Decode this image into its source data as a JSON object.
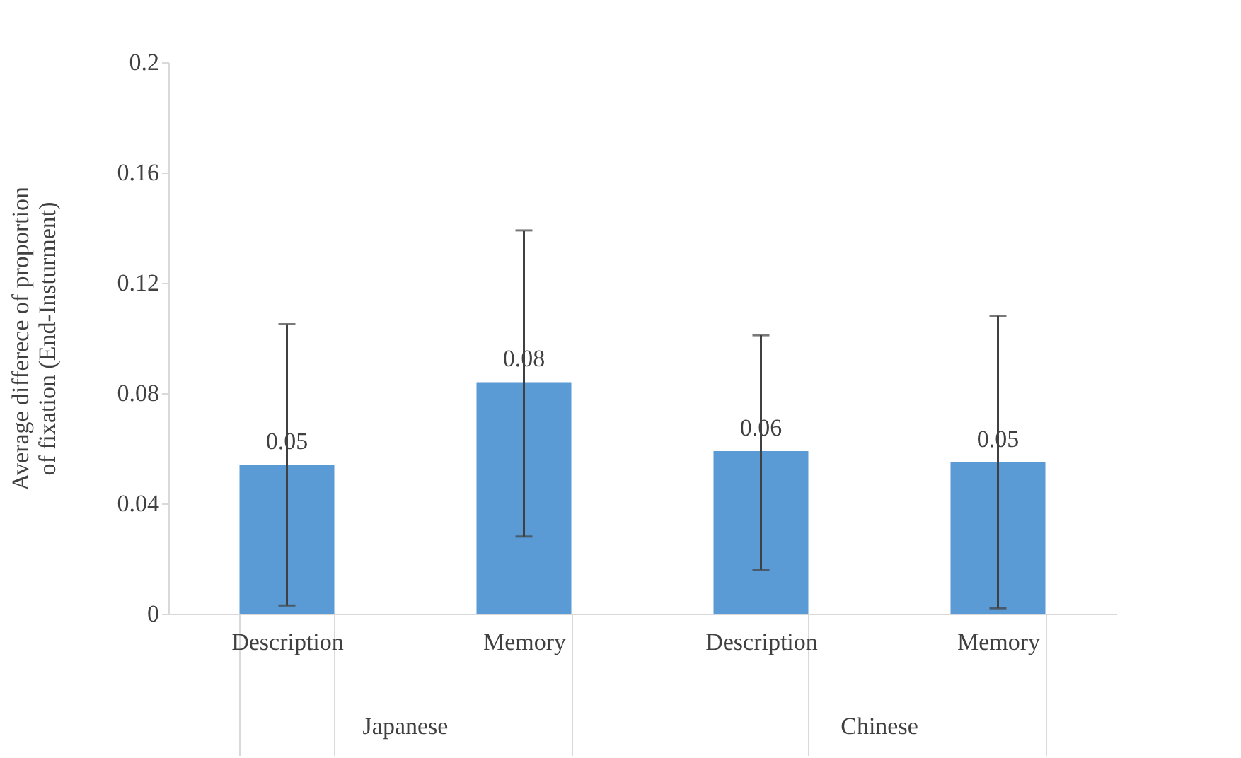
{
  "chart_data": {
    "type": "bar",
    "ylabel": "Average differece of proportion\nof fixation (End-Insturment)",
    "categories": [
      "Description",
      "Memory",
      "Description",
      "Memory"
    ],
    "values": [
      0.054,
      0.084,
      0.059,
      0.055
    ],
    "errors": [
      [
        0.003,
        0.105
      ],
      [
        0.028,
        0.139
      ],
      [
        0.016,
        0.101
      ],
      [
        0.002,
        0.108
      ]
    ],
    "value_labels": [
      "0.05",
      "0.08",
      "0.06",
      "0.05"
    ],
    "color": "#5b9bd5",
    "annotations": [
      "Japanese",
      "Chinese"
    ],
    "ylim": [
      0,
      0.2
    ],
    "yticks": [
      0,
      0.04,
      0.08,
      0.12,
      0.16,
      0.2
    ],
    "grid": false
  }
}
